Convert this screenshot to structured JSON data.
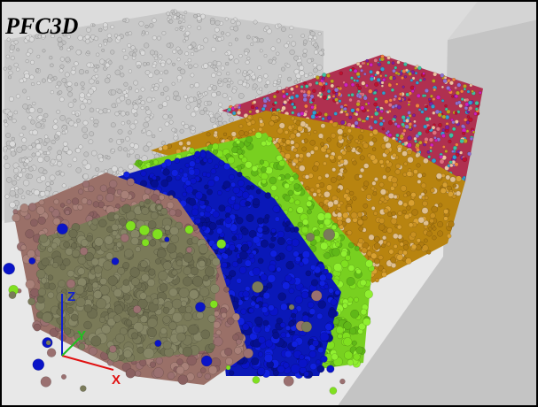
{
  "title": "PFC3D",
  "axes": {
    "z": "Z",
    "y": "Y",
    "x": "X"
  }
}
